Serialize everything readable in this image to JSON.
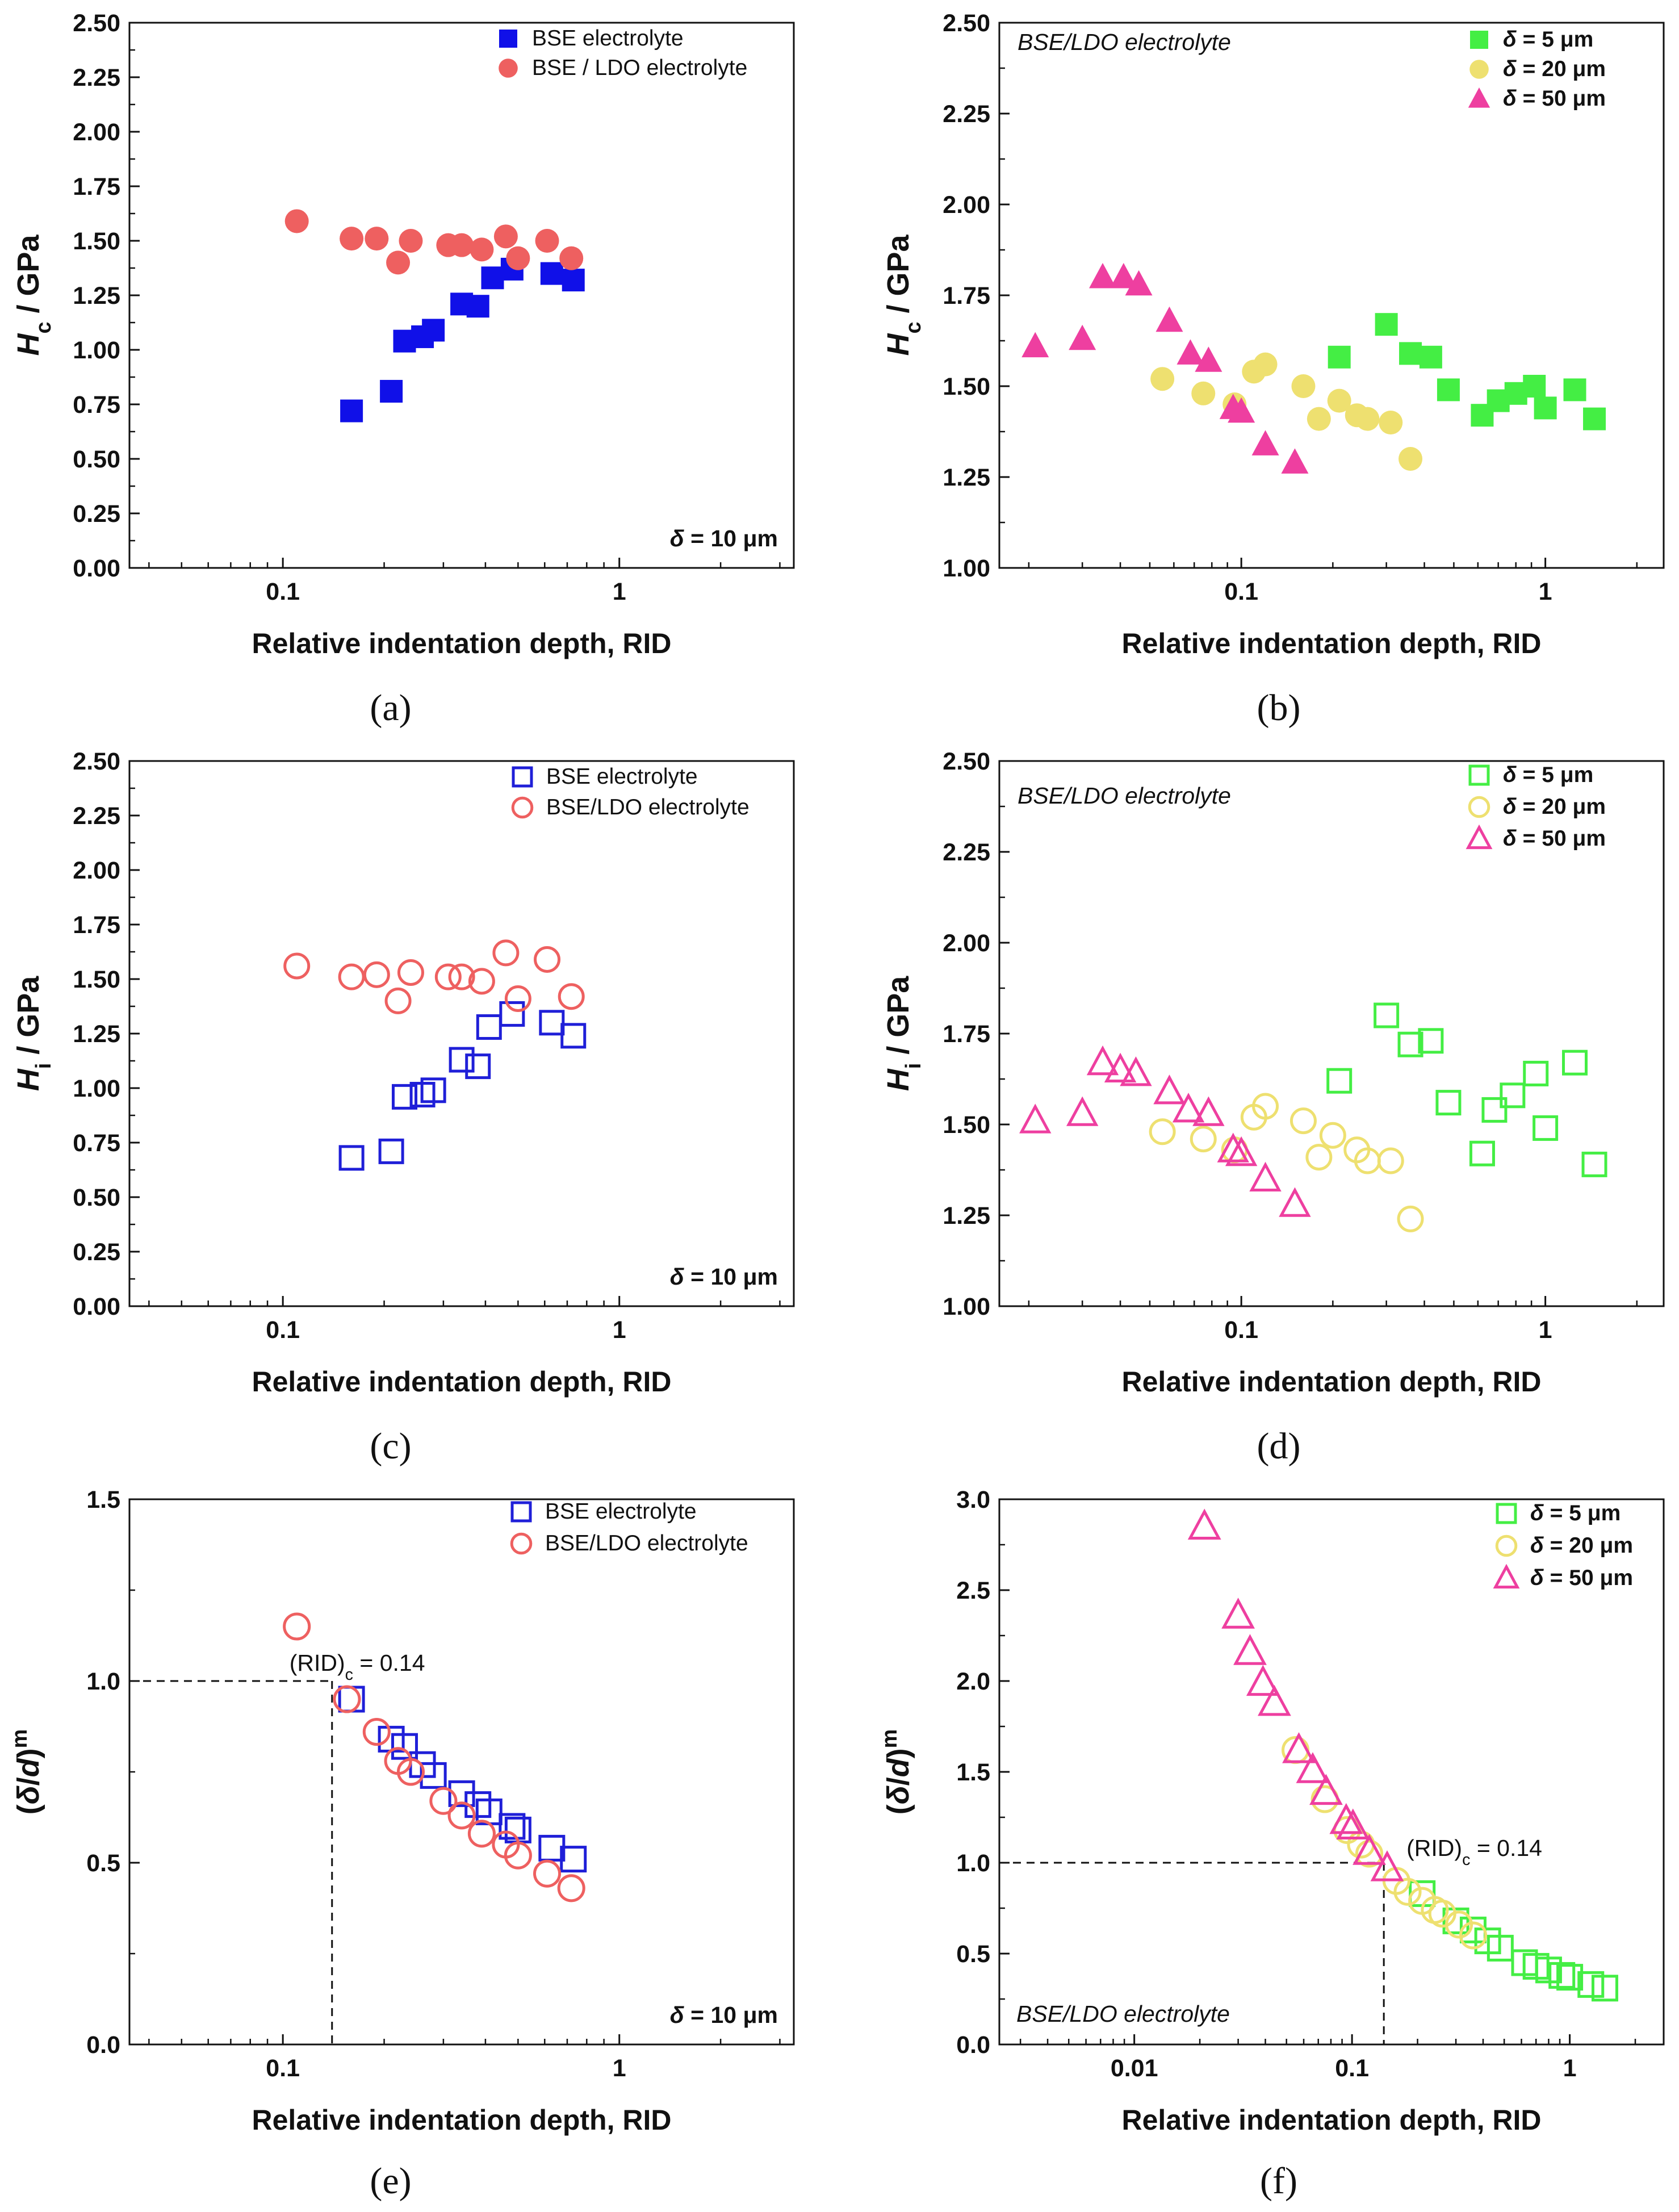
{
  "chart_data": [
    {
      "panel": "(a)",
      "type": "scatter",
      "xlabel": "Relative indentation depth, RID",
      "ylabel": "Hc / GPa",
      "xscale": "log",
      "xlim": [
        0.035,
        3.3
      ],
      "ylim": [
        0,
        2.5
      ],
      "xticks": [
        0.1,
        1
      ],
      "xtick_labels": [
        "0.1",
        "1"
      ],
      "yticks": [
        0,
        0.25,
        0.5,
        0.75,
        1.0,
        1.25,
        1.5,
        1.75,
        2.0,
        2.25,
        2.5
      ],
      "ytick_labels": [
        "0.00",
        "0.25",
        "0.50",
        "0.75",
        "1.00",
        "1.25",
        "1.50",
        "1.75",
        "2.00",
        "2.25",
        "2.50"
      ],
      "legend_position": "top-right",
      "annotation": "δ = 10 μm",
      "series": [
        {
          "name": "BSE electrolyte",
          "marker": "square",
          "filled": true,
          "color": "#1010e8",
          "x": [
            0.16,
            0.21,
            0.23,
            0.26,
            0.28,
            0.34,
            0.38,
            0.42,
            0.48,
            0.63,
            0.73
          ],
          "y": [
            0.72,
            0.81,
            1.04,
            1.06,
            1.09,
            1.21,
            1.2,
            1.33,
            1.37,
            1.35,
            1.32
          ]
        },
        {
          "name": "BSE / LDO electrolyte",
          "marker": "circle",
          "filled": true,
          "color": "#ee6060",
          "x": [
            0.11,
            0.16,
            0.19,
            0.22,
            0.24,
            0.31,
            0.34,
            0.39,
            0.46,
            0.5,
            0.61,
            0.72
          ],
          "y": [
            1.59,
            1.51,
            1.51,
            1.4,
            1.5,
            1.48,
            1.48,
            1.46,
            1.52,
            1.42,
            1.5,
            1.42
          ]
        }
      ]
    },
    {
      "panel": "(b)",
      "type": "scatter",
      "xlabel": "Relative indentation depth, RID",
      "ylabel": "Hc / GPa",
      "xscale": "log",
      "xlim": [
        0.016,
        2.45
      ],
      "ylim": [
        1.0,
        2.5
      ],
      "xticks": [
        0.1,
        1
      ],
      "xtick_labels": [
        "0.1",
        "1"
      ],
      "yticks": [
        1.0,
        1.25,
        1.5,
        1.75,
        2.0,
        2.25,
        2.5
      ],
      "ytick_labels": [
        "1.00",
        "1.25",
        "1.50",
        "1.75",
        "2.00",
        "2.25",
        "2.50"
      ],
      "legend_position": "top-right",
      "annotation": "BSE/LDO electrolyte",
      "series": [
        {
          "name": "δ = 5 μm",
          "marker": "square",
          "filled": true,
          "color": "#44ee44",
          "x": [
            0.21,
            0.3,
            0.36,
            0.42,
            0.48,
            0.62,
            0.7,
            0.8,
            0.92,
            1.0,
            1.25,
            1.45
          ],
          "y": [
            1.58,
            1.67,
            1.59,
            1.58,
            1.49,
            1.42,
            1.46,
            1.48,
            1.5,
            1.44,
            1.49,
            1.41
          ]
        },
        {
          "name": "δ = 20 μm",
          "marker": "circle",
          "filled": true,
          "color": "#eee070",
          "x": [
            0.055,
            0.075,
            0.095,
            0.11,
            0.12,
            0.16,
            0.18,
            0.21,
            0.24,
            0.26,
            0.31,
            0.36
          ],
          "y": [
            1.52,
            1.48,
            1.45,
            1.54,
            1.56,
            1.5,
            1.41,
            1.46,
            1.42,
            1.41,
            1.4,
            1.3
          ]
        },
        {
          "name": "δ = 50 μm",
          "marker": "triangle",
          "filled": true,
          "color": "#ee3fa0",
          "x": [
            0.021,
            0.03,
            0.035,
            0.041,
            0.046,
            0.058,
            0.068,
            0.078,
            0.094,
            0.1,
            0.12,
            0.15
          ],
          "y": [
            1.61,
            1.63,
            1.8,
            1.8,
            1.78,
            1.68,
            1.59,
            1.57,
            1.44,
            1.43,
            1.34,
            1.29
          ]
        }
      ]
    },
    {
      "panel": "(c)",
      "type": "scatter",
      "xlabel": "Relative indentation depth, RID",
      "ylabel": "Hi / GPa",
      "xscale": "log",
      "xlim": [
        0.035,
        3.3
      ],
      "ylim": [
        0,
        2.5
      ],
      "xticks": [
        0.1,
        1
      ],
      "xtick_labels": [
        "0.1",
        "1"
      ],
      "yticks": [
        0,
        0.25,
        0.5,
        0.75,
        1.0,
        1.25,
        1.5,
        1.75,
        2.0,
        2.25,
        2.5
      ],
      "ytick_labels": [
        "0.00",
        "0.25",
        "0.50",
        "0.75",
        "1.00",
        "1.25",
        "1.50",
        "1.75",
        "2.00",
        "2.25",
        "2.50"
      ],
      "legend_position": "top-right",
      "annotation": "δ = 10 μm",
      "series": [
        {
          "name": "BSE electrolyte",
          "marker": "square",
          "filled": false,
          "color": "#1f1fd8",
          "x": [
            0.16,
            0.21,
            0.23,
            0.26,
            0.28,
            0.34,
            0.38,
            0.41,
            0.48,
            0.63,
            0.73
          ],
          "y": [
            0.68,
            0.71,
            0.96,
            0.97,
            0.99,
            1.13,
            1.1,
            1.28,
            1.34,
            1.3,
            1.24
          ]
        },
        {
          "name": "BSE/LDO electrolyte",
          "marker": "circle",
          "filled": false,
          "color": "#ee6060",
          "x": [
            0.11,
            0.16,
            0.19,
            0.22,
            0.24,
            0.31,
            0.34,
            0.39,
            0.46,
            0.5,
            0.61,
            0.72
          ],
          "y": [
            1.56,
            1.51,
            1.52,
            1.4,
            1.53,
            1.51,
            1.51,
            1.49,
            1.62,
            1.41,
            1.59,
            1.42
          ]
        }
      ]
    },
    {
      "panel": "(d)",
      "type": "scatter",
      "xlabel": "Relative indentation depth, RID",
      "ylabel": "Hi / GPa",
      "xscale": "log",
      "xlim": [
        0.016,
        2.45
      ],
      "ylim": [
        1.0,
        2.5
      ],
      "xticks": [
        0.1,
        1
      ],
      "xtick_labels": [
        "0.1",
        "1"
      ],
      "yticks": [
        1.0,
        1.25,
        1.5,
        1.75,
        2.0,
        2.25,
        2.5
      ],
      "ytick_labels": [
        "1.00",
        "1.25",
        "1.50",
        "1.75",
        "2.00",
        "2.25",
        "2.50"
      ],
      "legend_position": "top-right",
      "annotation": "BSE/LDO electrolyte",
      "series": [
        {
          "name": "δ = 5 μm",
          "marker": "square",
          "filled": false,
          "color": "#44ee44",
          "x": [
            0.21,
            0.3,
            0.36,
            0.42,
            0.48,
            0.62,
            0.68,
            0.78,
            0.93,
            1.0,
            1.25,
            1.45
          ],
          "y": [
            1.62,
            1.8,
            1.72,
            1.73,
            1.56,
            1.42,
            1.54,
            1.58,
            1.64,
            1.49,
            1.67,
            1.39
          ]
        },
        {
          "name": "δ = 20 μm",
          "marker": "circle",
          "filled": false,
          "color": "#eee070",
          "x": [
            0.055,
            0.075,
            0.095,
            0.11,
            0.12,
            0.16,
            0.18,
            0.2,
            0.24,
            0.26,
            0.31,
            0.36
          ],
          "y": [
            1.48,
            1.46,
            1.43,
            1.52,
            1.55,
            1.51,
            1.41,
            1.47,
            1.43,
            1.4,
            1.4,
            1.24
          ]
        },
        {
          "name": "δ = 50 μm",
          "marker": "triangle",
          "filled": false,
          "color": "#ee3fa0",
          "x": [
            0.021,
            0.03,
            0.035,
            0.04,
            0.045,
            0.058,
            0.067,
            0.078,
            0.094,
            0.1,
            0.12,
            0.15
          ],
          "y": [
            1.51,
            1.53,
            1.67,
            1.65,
            1.64,
            1.59,
            1.54,
            1.53,
            1.43,
            1.42,
            1.35,
            1.28
          ]
        }
      ]
    },
    {
      "panel": "(e)",
      "type": "scatter",
      "xlabel": "Relative indentation depth, RID",
      "ylabel": "(δ/d)^m",
      "xscale": "log",
      "xlim": [
        0.035,
        3.3
      ],
      "ylim": [
        0,
        1.5
      ],
      "xticks": [
        0.1,
        1
      ],
      "xtick_labels": [
        "0.1",
        "1"
      ],
      "yticks": [
        0,
        0.5,
        1.0,
        1.5
      ],
      "ytick_labels": [
        "0.0",
        "0.5",
        "1.0",
        "1.5"
      ],
      "legend_position": "top-right",
      "annotation": "δ = 10 μm",
      "critical_label": "(RID)c = 0.14",
      "critical_point": {
        "x": 0.14,
        "y": 1.0
      },
      "series": [
        {
          "name": "BSE electrolyte",
          "marker": "square",
          "filled": false,
          "color": "#1f1fd8",
          "x": [
            0.16,
            0.21,
            0.23,
            0.26,
            0.28,
            0.34,
            0.38,
            0.41,
            0.48,
            0.5,
            0.63,
            0.73
          ],
          "y": [
            0.95,
            0.84,
            0.82,
            0.77,
            0.74,
            0.69,
            0.66,
            0.64,
            0.6,
            0.59,
            0.54,
            0.51
          ]
        },
        {
          "name": "BSE/LDO electrolyte",
          "marker": "circle",
          "filled": false,
          "color": "#ee6060",
          "x": [
            0.11,
            0.155,
            0.19,
            0.22,
            0.24,
            0.3,
            0.34,
            0.39,
            0.46,
            0.5,
            0.61,
            0.72
          ],
          "y": [
            1.15,
            0.95,
            0.86,
            0.78,
            0.75,
            0.67,
            0.63,
            0.58,
            0.55,
            0.52,
            0.47,
            0.43
          ]
        }
      ]
    },
    {
      "panel": "(f)",
      "type": "scatter",
      "xlabel": "Relative indentation depth, RID",
      "ylabel": "(δ/d)^m",
      "xscale": "log",
      "xlim": [
        0.0024,
        2.7
      ],
      "ylim": [
        0,
        3.0
      ],
      "xticks": [
        0.01,
        0.1,
        1
      ],
      "xtick_labels": [
        "0.01",
        "0.1",
        "1"
      ],
      "yticks": [
        0,
        0.5,
        1.0,
        1.5,
        2.0,
        2.5,
        3.0
      ],
      "ytick_labels": [
        "0.0",
        "0.5",
        "1.0",
        "1.5",
        "2.0",
        "2.5",
        "3.0"
      ],
      "legend_position": "top-right",
      "annotation": "BSE/LDO electrolyte",
      "critical_label": "(RID)c = 0.14",
      "critical_point": {
        "x": 0.14,
        "y": 1.0
      },
      "series": [
        {
          "name": "δ = 5 μm",
          "marker": "square",
          "filled": false,
          "color": "#44ee44",
          "x": [
            0.21,
            0.3,
            0.36,
            0.42,
            0.48,
            0.62,
            0.7,
            0.8,
            0.92,
            1.0,
            1.25,
            1.45
          ],
          "y": [
            0.83,
            0.68,
            0.63,
            0.57,
            0.53,
            0.45,
            0.43,
            0.41,
            0.38,
            0.37,
            0.33,
            0.31
          ]
        },
        {
          "name": "δ = 20 μm",
          "marker": "circle",
          "filled": false,
          "color": "#eee070",
          "x": [
            0.055,
            0.075,
            0.095,
            0.11,
            0.12,
            0.16,
            0.18,
            0.21,
            0.24,
            0.26,
            0.31,
            0.36
          ],
          "y": [
            1.62,
            1.35,
            1.18,
            1.1,
            1.05,
            0.9,
            0.84,
            0.79,
            0.74,
            0.72,
            0.66,
            0.6
          ]
        },
        {
          "name": "δ = 50 μm",
          "marker": "triangle",
          "filled": false,
          "color": "#ee3fa0",
          "x": [
            0.021,
            0.03,
            0.034,
            0.039,
            0.044,
            0.057,
            0.066,
            0.076,
            0.094,
            0.101,
            0.12,
            0.145
          ],
          "y": [
            2.85,
            2.36,
            2.16,
            1.99,
            1.88,
            1.62,
            1.51,
            1.39,
            1.23,
            1.2,
            1.06,
            0.97
          ]
        }
      ]
    }
  ]
}
